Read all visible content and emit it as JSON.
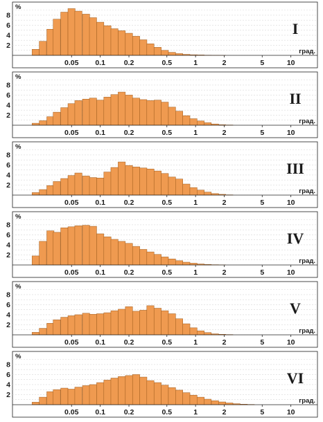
{
  "bar_color": "#ef9a50",
  "bar_edge_color": "#9c5a1c",
  "chart_data": [
    {
      "type": "bar",
      "panel_label": "I",
      "ylabel": "%",
      "xlabel": "град.",
      "x_scale": "log",
      "xlim": [
        0.012,
        19
      ],
      "ylim": [
        0,
        9.5
      ],
      "y_ticks": [
        2,
        4,
        6,
        8
      ],
      "x_ticks": [
        0.05,
        0.1,
        0.2,
        0.5,
        1,
        2,
        5,
        10
      ],
      "x_tick_labels": [
        "0.05",
        "0.1",
        "0.2",
        "0.5",
        "1",
        "2",
        "5",
        "10"
      ],
      "x": [
        0.021,
        0.025,
        0.03,
        0.035,
        0.042,
        0.05,
        0.059,
        0.071,
        0.084,
        0.1,
        0.119,
        0.141,
        0.168,
        0.2,
        0.238,
        0.283,
        0.336,
        0.4,
        0.476,
        0.566,
        0.673,
        0.8,
        0.951,
        1.13,
        1.34,
        1.6,
        1.9
      ],
      "values": [
        1.2,
        2.8,
        5.2,
        7.2,
        8.6,
        9.3,
        8.8,
        8.2,
        7.5,
        6.6,
        5.9,
        5.3,
        4.9,
        4.4,
        3.8,
        3.1,
        2.3,
        1.6,
        1.0,
        0.6,
        0.35,
        0.2,
        0.12,
        0.08,
        0.04,
        0.02,
        0.01
      ]
    },
    {
      "type": "bar",
      "panel_label": "II",
      "ylabel": "%",
      "xlabel": "град.",
      "x_scale": "log",
      "xlim": [
        0.012,
        19
      ],
      "ylim": [
        0,
        9.5
      ],
      "y_ticks": [
        2,
        4,
        6,
        8
      ],
      "x_ticks": [
        0.05,
        0.1,
        0.2,
        0.5,
        1,
        2,
        5,
        10
      ],
      "x_tick_labels": [
        "0.05",
        "0.1",
        "0.2",
        "0.5",
        "1",
        "2",
        "5",
        "10"
      ],
      "x": [
        0.021,
        0.025,
        0.03,
        0.035,
        0.042,
        0.05,
        0.059,
        0.071,
        0.084,
        0.1,
        0.119,
        0.141,
        0.168,
        0.2,
        0.238,
        0.283,
        0.336,
        0.4,
        0.476,
        0.566,
        0.673,
        0.8,
        0.951,
        1.13,
        1.34,
        1.6,
        1.9,
        2.26
      ],
      "values": [
        0.4,
        0.9,
        1.7,
        2.6,
        3.5,
        4.3,
        4.9,
        5.2,
        5.4,
        5.0,
        5.6,
        6.1,
        6.6,
        6.0,
        5.4,
        5.1,
        4.9,
        5.0,
        4.6,
        3.6,
        2.8,
        1.9,
        1.3,
        0.85,
        0.5,
        0.25,
        0.1,
        0.05
      ]
    },
    {
      "type": "bar",
      "panel_label": "III",
      "ylabel": "%",
      "xlabel": "град.",
      "x_scale": "log",
      "xlim": [
        0.012,
        19
      ],
      "ylim": [
        0,
        9.5
      ],
      "y_ticks": [
        2,
        4,
        6,
        8
      ],
      "x_ticks": [
        0.05,
        0.1,
        0.2,
        0.5,
        1,
        2,
        5,
        10
      ],
      "x_tick_labels": [
        "0.05",
        "0.1",
        "0.2",
        "0.5",
        "1",
        "2",
        "5",
        "10"
      ],
      "x": [
        0.021,
        0.025,
        0.03,
        0.035,
        0.042,
        0.05,
        0.059,
        0.071,
        0.084,
        0.1,
        0.119,
        0.141,
        0.168,
        0.2,
        0.238,
        0.283,
        0.336,
        0.4,
        0.476,
        0.566,
        0.673,
        0.8,
        0.951,
        1.13,
        1.34,
        1.6,
        1.9,
        2.26
      ],
      "values": [
        0.5,
        1.1,
        1.9,
        2.7,
        3.3,
        3.9,
        4.4,
        3.8,
        3.5,
        3.4,
        4.6,
        5.5,
        6.6,
        5.9,
        5.6,
        5.4,
        5.2,
        4.8,
        4.3,
        3.6,
        3.2,
        2.2,
        1.5,
        1.0,
        0.6,
        0.3,
        0.15,
        0.05
      ]
    },
    {
      "type": "bar",
      "panel_label": "IV",
      "ylabel": "%",
      "xlabel": "град.",
      "x_scale": "log",
      "xlim": [
        0.012,
        19
      ],
      "ylim": [
        0,
        9.5
      ],
      "y_ticks": [
        2,
        4,
        6,
        8
      ],
      "x_ticks": [
        0.05,
        0.1,
        0.2,
        0.5,
        1,
        2,
        5,
        10
      ],
      "x_tick_labels": [
        "0.05",
        "0.1",
        "0.2",
        "0.5",
        "1",
        "2",
        "5",
        "10"
      ],
      "x": [
        0.021,
        0.025,
        0.03,
        0.035,
        0.042,
        0.05,
        0.059,
        0.071,
        0.084,
        0.1,
        0.119,
        0.141,
        0.168,
        0.2,
        0.238,
        0.283,
        0.336,
        0.4,
        0.476,
        0.566,
        0.673,
        0.8,
        0.951,
        1.13,
        1.34,
        1.6,
        1.9
      ],
      "values": [
        1.8,
        4.7,
        6.8,
        6.5,
        7.4,
        7.6,
        7.8,
        7.9,
        7.7,
        6.2,
        5.6,
        5.1,
        4.7,
        4.3,
        3.7,
        3.1,
        2.6,
        2.1,
        1.6,
        1.2,
        0.85,
        0.55,
        0.35,
        0.2,
        0.1,
        0.05,
        0.02
      ]
    },
    {
      "type": "bar",
      "panel_label": "V",
      "ylabel": "%",
      "xlabel": "град.",
      "x_scale": "log",
      "xlim": [
        0.012,
        19
      ],
      "ylim": [
        0,
        9.5
      ],
      "y_ticks": [
        2,
        4,
        6,
        8
      ],
      "x_ticks": [
        0.05,
        0.1,
        0.2,
        0.5,
        1,
        2,
        5,
        10
      ],
      "x_tick_labels": [
        "0.05",
        "0.1",
        "0.2",
        "0.5",
        "1",
        "2",
        "5",
        "10"
      ],
      "x": [
        0.021,
        0.025,
        0.03,
        0.035,
        0.042,
        0.05,
        0.059,
        0.071,
        0.084,
        0.1,
        0.119,
        0.141,
        0.168,
        0.2,
        0.238,
        0.283,
        0.336,
        0.4,
        0.476,
        0.566,
        0.673,
        0.8,
        0.951,
        1.13,
        1.34,
        1.6,
        1.9,
        2.26
      ],
      "values": [
        0.5,
        1.3,
        2.3,
        3.0,
        3.5,
        3.8,
        4.0,
        4.3,
        4.1,
        4.2,
        4.4,
        4.8,
        5.1,
        5.6,
        4.7,
        4.9,
        5.8,
        5.3,
        4.8,
        4.2,
        3.2,
        2.2,
        1.4,
        0.8,
        0.45,
        0.2,
        0.1,
        0.05
      ]
    },
    {
      "type": "bar",
      "panel_label": "VI",
      "ylabel": "%",
      "xlabel": "град.",
      "x_scale": "log",
      "xlim": [
        0.012,
        19
      ],
      "ylim": [
        0,
        9.5
      ],
      "y_ticks": [
        2,
        4,
        6,
        8
      ],
      "x_ticks": [
        0.05,
        0.1,
        0.2,
        0.5,
        1,
        2,
        5,
        10
      ],
      "x_tick_labels": [
        "0.05",
        "0.1",
        "0.2",
        "0.5",
        "1",
        "2",
        "5",
        "10"
      ],
      "x": [
        0.021,
        0.025,
        0.03,
        0.035,
        0.042,
        0.05,
        0.059,
        0.071,
        0.084,
        0.1,
        0.119,
        0.141,
        0.168,
        0.2,
        0.238,
        0.283,
        0.336,
        0.4,
        0.476,
        0.566,
        0.673,
        0.8,
        0.951,
        1.13,
        1.34,
        1.6,
        1.9,
        2.26,
        2.69,
        3.2,
        3.8
      ],
      "values": [
        0.5,
        1.5,
        2.6,
        3.0,
        3.3,
        3.1,
        3.5,
        3.8,
        4.0,
        4.4,
        4.9,
        5.3,
        5.6,
        5.8,
        6.0,
        5.5,
        4.8,
        4.4,
        3.9,
        3.4,
        2.9,
        2.4,
        1.9,
        1.5,
        1.1,
        0.8,
        0.55,
        0.35,
        0.2,
        0.1,
        0.05
      ]
    }
  ]
}
